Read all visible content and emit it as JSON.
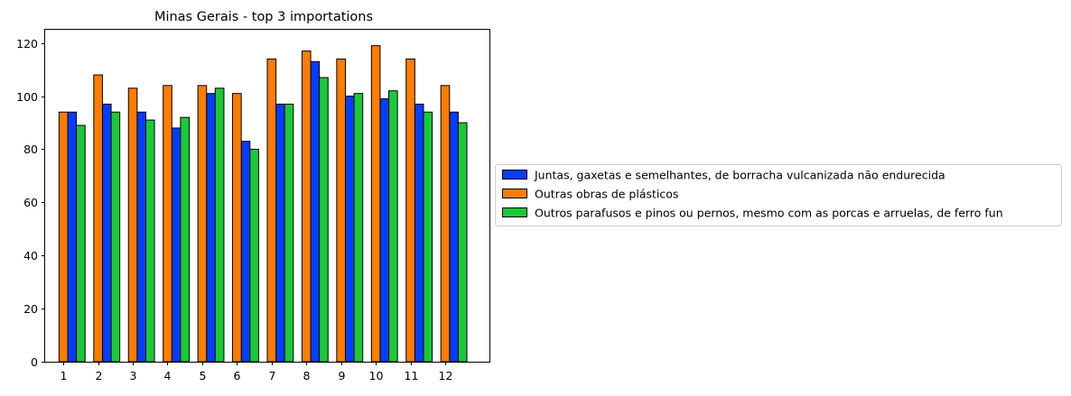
{
  "chart_data": {
    "type": "bar",
    "title": "Minas Gerais - top 3 importations",
    "xlabel": "",
    "ylabel": "",
    "ylim": [
      0,
      125
    ],
    "yticks": [
      0,
      20,
      40,
      60,
      80,
      100,
      120
    ],
    "x_tick_labels": [
      "1",
      "2",
      "3",
      "4",
      "5",
      "6",
      "7",
      "8",
      "9",
      "10",
      "11",
      "12"
    ],
    "legend_position": "center-right outside",
    "grid": false,
    "series": [
      {
        "name": "Juntas, gaxetas e semelhantes, de borracha vulcanizada não endurecida",
        "color": "#023eff",
        "x": [
          1.25,
          2.25,
          3.25,
          4.25,
          5.25,
          6.25,
          7.25,
          8.25,
          9.25,
          10.25,
          11.25,
          12.25
        ],
        "values": [
          94,
          97,
          94,
          88,
          101,
          83,
          97,
          113,
          100,
          99,
          97,
          94
        ]
      },
      {
        "name": "Outras obras de plásticos",
        "color": "#ff7c00",
        "x": [
          1,
          2,
          3,
          4,
          5,
          6,
          7,
          8,
          9,
          10,
          11,
          12
        ],
        "values": [
          94,
          108,
          103,
          104,
          104,
          101,
          114,
          117,
          114,
          119,
          114,
          104
        ]
      },
      {
        "name": "Outros parafusos e pinos ou pernos, mesmo com as porcas e arruelas, de ferro fun",
        "color": "#1ac938",
        "x": [
          1.5,
          2.5,
          3.5,
          4.5,
          5.5,
          6.5,
          7.5,
          8.5,
          9.5,
          10.5,
          11.5,
          12.5
        ],
        "values": [
          89,
          94,
          91,
          92,
          103,
          80,
          97,
          107,
          101,
          102,
          94,
          90
        ]
      }
    ]
  }
}
